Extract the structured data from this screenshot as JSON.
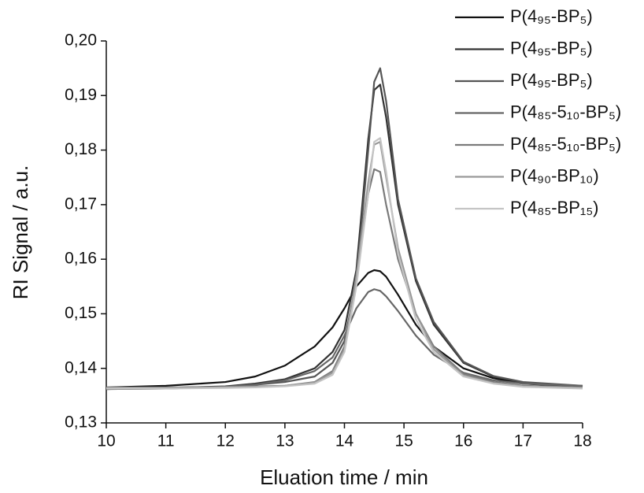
{
  "chart_data": {
    "type": "line",
    "xlabel": "Eluation time / min",
    "ylabel": "RI Signal / a.u.",
    "x": [
      10,
      11,
      12,
      12.5,
      13,
      13.5,
      13.8,
      14,
      14.2,
      14.4,
      14.5,
      14.6,
      14.7,
      14.9,
      15.2,
      15.5,
      16,
      16.5,
      17,
      18
    ],
    "xlim": [
      10,
      18
    ],
    "xticks": [
      10,
      11,
      12,
      13,
      14,
      15,
      16,
      17,
      18
    ],
    "ylim": [
      0.13,
      0.2
    ],
    "yticks": [
      {
        "value": 0.13,
        "label": "0,13"
      },
      {
        "value": 0.14,
        "label": "0,14"
      },
      {
        "value": 0.15,
        "label": "0,15"
      },
      {
        "value": 0.16,
        "label": "0,16"
      },
      {
        "value": 0.17,
        "label": "0,17"
      },
      {
        "value": 0.18,
        "label": "0,18"
      },
      {
        "value": 0.19,
        "label": "0,19"
      },
      {
        "value": 0.2,
        "label": "0,20"
      }
    ],
    "legend": "upper right",
    "series": [
      {
        "name": "P(4₉₅-BP₅)",
        "color": "#111111",
        "values": [
          0.1365,
          0.1368,
          0.1375,
          0.1385,
          0.1405,
          0.144,
          0.1475,
          0.151,
          0.155,
          0.1575,
          0.158,
          0.1578,
          0.1568,
          0.1535,
          0.148,
          0.144,
          0.14,
          0.1382,
          0.1372,
          0.1366
        ]
      },
      {
        "name": "P(4₉₅-BP₅)",
        "color": "#333333",
        "values": [
          0.1362,
          0.1364,
          0.1367,
          0.1372,
          0.138,
          0.14,
          0.143,
          0.147,
          0.158,
          0.182,
          0.191,
          0.192,
          0.186,
          0.17,
          0.156,
          0.148,
          0.141,
          0.1385,
          0.1374,
          0.1367
        ]
      },
      {
        "name": "P(4₉₅-BP₅)",
        "color": "#555555",
        "values": [
          0.1362,
          0.1363,
          0.1366,
          0.137,
          0.1375,
          0.1385,
          0.141,
          0.145,
          0.156,
          0.18,
          0.1925,
          0.195,
          0.189,
          0.171,
          0.1565,
          0.1485,
          0.1412,
          0.1386,
          0.1375,
          0.1368
        ]
      },
      {
        "name": "P(4₈₅-5₁₀-BP₅)",
        "color": "#666666",
        "values": [
          0.1362,
          0.1363,
          0.1366,
          0.137,
          0.1378,
          0.1395,
          0.142,
          0.146,
          0.151,
          0.154,
          0.1545,
          0.1542,
          0.1532,
          0.1505,
          0.146,
          0.1425,
          0.1392,
          0.1378,
          0.1372,
          0.1368
        ]
      },
      {
        "name": "P(4₈₅-5₁₀-BP₅)",
        "color": "#7a7a7a",
        "values": [
          0.1365,
          0.1365,
          0.1366,
          0.1367,
          0.1368,
          0.1375,
          0.1395,
          0.144,
          0.156,
          0.172,
          0.1765,
          0.176,
          0.17,
          0.16,
          0.15,
          0.144,
          0.139,
          0.1375,
          0.1368,
          0.1365
        ]
      },
      {
        "name": "P(4₉₀-BP₁₀)",
        "color": "#999999",
        "values": [
          0.1364,
          0.1364,
          0.1365,
          0.1366,
          0.1368,
          0.1374,
          0.1392,
          0.1435,
          0.157,
          0.174,
          0.181,
          0.1815,
          0.175,
          0.162,
          0.15,
          0.1435,
          0.1387,
          0.1373,
          0.1367,
          0.1364
        ]
      },
      {
        "name": "P(4₈₅-BP₁₅)",
        "color": "#c4c4c4",
        "values": [
          0.1363,
          0.1363,
          0.1364,
          0.1365,
          0.1367,
          0.1372,
          0.1388,
          0.143,
          0.155,
          0.172,
          0.1815,
          0.1822,
          0.176,
          0.161,
          0.149,
          0.143,
          0.1385,
          0.1372,
          0.1366,
          0.1363
        ]
      }
    ]
  }
}
